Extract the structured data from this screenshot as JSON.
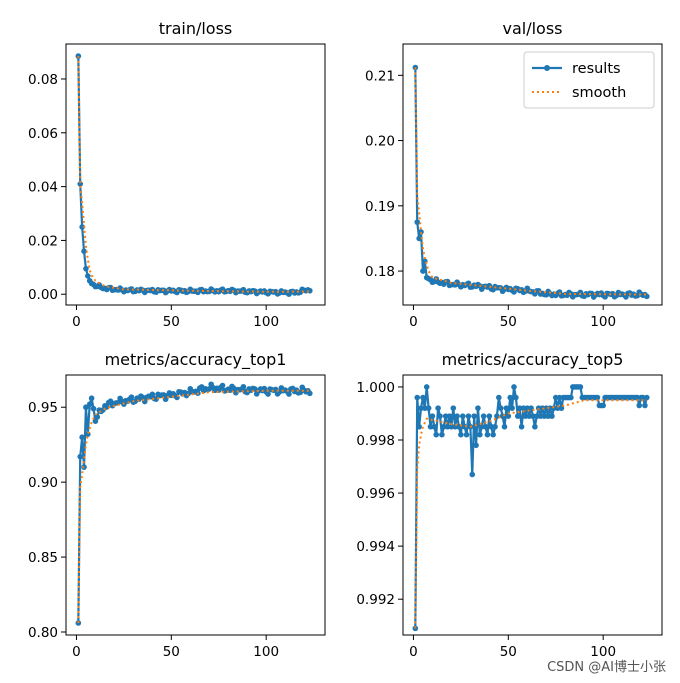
{
  "colors": {
    "results": "#1f77b4",
    "smooth": "#ff7f0e",
    "axis": "#000000"
  },
  "watermark": "CSDN @AI博士小张",
  "legend": {
    "results_label": "results",
    "smooth_label": "smooth"
  },
  "chart_data": [
    {
      "type": "line",
      "title": "train/loss",
      "xlim": [
        -5.5,
        131
      ],
      "ylim": [
        -0.004,
        0.093
      ],
      "xticks": [
        0,
        50,
        100
      ],
      "yticks": [
        0.0,
        0.02,
        0.04,
        0.06,
        0.08
      ],
      "ytick_labels": [
        "0.00",
        "0.02",
        "0.04",
        "0.06",
        "0.08"
      ],
      "legend": false,
      "series": [
        {
          "name": "results",
          "anchors": [
            [
              1,
              0.0885
            ],
            [
              2,
              0.041
            ],
            [
              3,
              0.025
            ],
            [
              4,
              0.016
            ],
            [
              5,
              0.0095
            ],
            [
              6,
              0.0068
            ],
            [
              7,
              0.005
            ],
            [
              8,
              0.004
            ],
            [
              10,
              0.0032
            ],
            [
              15,
              0.0022
            ],
            [
              25,
              0.0015
            ],
            [
              40,
              0.0013
            ],
            [
              60,
              0.0012
            ],
            [
              80,
              0.0013
            ],
            [
              100,
              0.0008
            ],
            [
              115,
              0.0006
            ],
            [
              123,
              0.0018
            ]
          ],
          "noise": 0.0007
        },
        {
          "name": "smooth",
          "anchors": [
            [
              1,
              0.0885
            ],
            [
              2,
              0.041
            ],
            [
              3,
              0.034
            ],
            [
              4,
              0.026
            ],
            [
              5,
              0.018
            ],
            [
              6,
              0.013
            ],
            [
              7,
              0.009
            ],
            [
              8,
              0.007
            ],
            [
              10,
              0.005
            ],
            [
              15,
              0.003
            ],
            [
              25,
              0.0018
            ],
            [
              60,
              0.0013
            ],
            [
              100,
              0.0009
            ],
            [
              123,
              0.001
            ]
          ]
        }
      ]
    },
    {
      "type": "line",
      "title": "val/loss",
      "xlim": [
        -5.5,
        131
      ],
      "ylim": [
        0.1748,
        0.2148
      ],
      "xticks": [
        0,
        50,
        100
      ],
      "yticks": [
        0.18,
        0.19,
        0.2,
        0.21
      ],
      "ytick_labels": [
        "0.18",
        "0.19",
        "0.20",
        "0.21"
      ],
      "legend": true,
      "series": [
        {
          "name": "results",
          "anchors": [
            [
              1,
              0.2112
            ],
            [
              2,
              0.1875
            ],
            [
              3,
              0.185
            ],
            [
              4,
              0.186
            ],
            [
              5,
              0.18
            ],
            [
              6,
              0.1815
            ],
            [
              7,
              0.179
            ],
            [
              10,
              0.1785
            ],
            [
              20,
              0.178
            ],
            [
              30,
              0.1778
            ],
            [
              40,
              0.1775
            ],
            [
              50,
              0.1772
            ],
            [
              60,
              0.177
            ],
            [
              70,
              0.1765
            ],
            [
              80,
              0.1764
            ],
            [
              123,
              0.1764
            ]
          ],
          "noise": 0.0004
        },
        {
          "name": "smooth",
          "anchors": [
            [
              1,
              0.2112
            ],
            [
              2,
              0.1915
            ],
            [
              3,
              0.189
            ],
            [
              4,
              0.186
            ],
            [
              5,
              0.1835
            ],
            [
              6,
              0.182
            ],
            [
              8,
              0.18
            ],
            [
              10,
              0.179
            ],
            [
              20,
              0.1782
            ],
            [
              40,
              0.1776
            ],
            [
              60,
              0.177
            ],
            [
              80,
              0.1765
            ],
            [
              123,
              0.1764
            ]
          ]
        }
      ]
    },
    {
      "type": "line",
      "title": "metrics/accuracy_top1",
      "xlim": [
        -5.5,
        131
      ],
      "ylim": [
        0.798,
        0.9715
      ],
      "xticks": [
        0,
        50,
        100
      ],
      "yticks": [
        0.8,
        0.85,
        0.9,
        0.95
      ],
      "ytick_labels": [
        "0.80",
        "0.85",
        "0.90",
        "0.95"
      ],
      "legend": false,
      "series": [
        {
          "name": "results",
          "anchors": [
            [
              1,
              0.806
            ],
            [
              2,
              0.917
            ],
            [
              3,
              0.93
            ],
            [
              4,
              0.91
            ],
            [
              5,
              0.95
            ],
            [
              6,
              0.932
            ],
            [
              7,
              0.952
            ],
            [
              8,
              0.956
            ],
            [
              10,
              0.942
            ],
            [
              15,
              0.951
            ],
            [
              20,
              0.953
            ],
            [
              30,
              0.955
            ],
            [
              40,
              0.957
            ],
            [
              50,
              0.958
            ],
            [
              60,
              0.96
            ],
            [
              70,
              0.963
            ],
            [
              80,
              0.962
            ],
            [
              100,
              0.961
            ],
            [
              123,
              0.961
            ]
          ],
          "noise": 0.0025
        },
        {
          "name": "smooth",
          "anchors": [
            [
              1,
              0.806
            ],
            [
              2,
              0.897
            ],
            [
              3,
              0.905
            ],
            [
              4,
              0.915
            ],
            [
              5,
              0.925
            ],
            [
              6,
              0.932
            ],
            [
              8,
              0.94
            ],
            [
              10,
              0.945
            ],
            [
              15,
              0.949
            ],
            [
              20,
              0.951
            ],
            [
              30,
              0.954
            ],
            [
              50,
              0.957
            ],
            [
              70,
              0.96
            ],
            [
              100,
              0.961
            ],
            [
              123,
              0.961
            ]
          ]
        }
      ]
    },
    {
      "type": "line",
      "title": "metrics/accuracy_top5",
      "xlim": [
        -5.5,
        131
      ],
      "ylim": [
        0.99065,
        1.00045
      ],
      "xticks": [
        0,
        50,
        100
      ],
      "yticks": [
        0.992,
        0.994,
        0.996,
        0.998,
        1.0
      ],
      "ytick_labels": [
        "0.992",
        "0.994",
        "0.996",
        "0.998",
        "1.000"
      ],
      "legend": false,
      "series": [
        {
          "name": "results",
          "values": [
            0.9909,
            0.9996,
            0.9985,
            0.9992,
            0.9996,
            0.9992,
            1.0,
            0.9992,
            0.9985,
            0.9989,
            0.9985,
            0.9982,
            0.9992,
            0.9989,
            0.9982,
            0.9985,
            0.9989,
            0.9985,
            0.9989,
            0.9985,
            0.9992,
            0.9985,
            0.9989,
            0.9985,
            0.9982,
            0.9989,
            0.9985,
            0.9982,
            0.9989,
            0.9985,
            0.9967,
            0.9989,
            0.9978,
            0.9992,
            0.9982,
            0.9985,
            0.9989,
            0.9985,
            0.9982,
            0.9989,
            0.9985,
            0.9982,
            0.9985,
            0.9989,
            0.9996,
            0.9992,
            0.9989,
            0.9985,
            0.9992,
            0.9989,
            0.9996,
            0.9992,
            1.0,
            0.9996,
            0.9989,
            0.9992,
            0.9985,
            0.9992,
            0.9989,
            0.9992,
            0.9989,
            0.9992,
            0.9989,
            0.9985,
            0.9989,
            0.9992,
            0.9989,
            0.9992,
            0.9989,
            0.9992,
            0.9989,
            0.9992,
            0.9989,
            0.9992,
            0.9996,
            0.9992,
            0.9996,
            0.9992,
            0.9996,
            0.9996,
            0.9996,
            0.9996,
            0.9996,
            1.0,
            1.0,
            1.0,
            1.0,
            1.0,
            0.9996,
            0.9996,
            0.9996,
            0.9996,
            0.9996,
            0.9996,
            0.9996,
            0.9996,
            0.9996,
            0.9993,
            0.9993,
            0.9993,
            0.9996,
            0.9996,
            0.9996,
            0.9996,
            0.9996,
            0.9996,
            0.9996,
            0.9996,
            0.9996,
            0.9996,
            0.9996,
            0.9996,
            0.9996,
            0.9996,
            0.9996,
            0.9996,
            0.9996,
            0.9996,
            0.9993,
            0.9996,
            0.9996,
            0.9993,
            0.9996
          ]
        },
        {
          "name": "smooth",
          "anchors": [
            [
              1,
              0.9909
            ],
            [
              2,
              0.9969
            ],
            [
              3,
              0.9978
            ],
            [
              4,
              0.9982
            ],
            [
              5,
              0.9985
            ],
            [
              7,
              0.9988
            ],
            [
              20,
              0.9986
            ],
            [
              30,
              0.9985
            ],
            [
              40,
              0.9987
            ],
            [
              50,
              0.999
            ],
            [
              60,
              0.9991
            ],
            [
              80,
              0.9993
            ],
            [
              90,
              0.9995
            ],
            [
              100,
              0.9995
            ],
            [
              123,
              0.9995
            ]
          ]
        }
      ]
    }
  ]
}
